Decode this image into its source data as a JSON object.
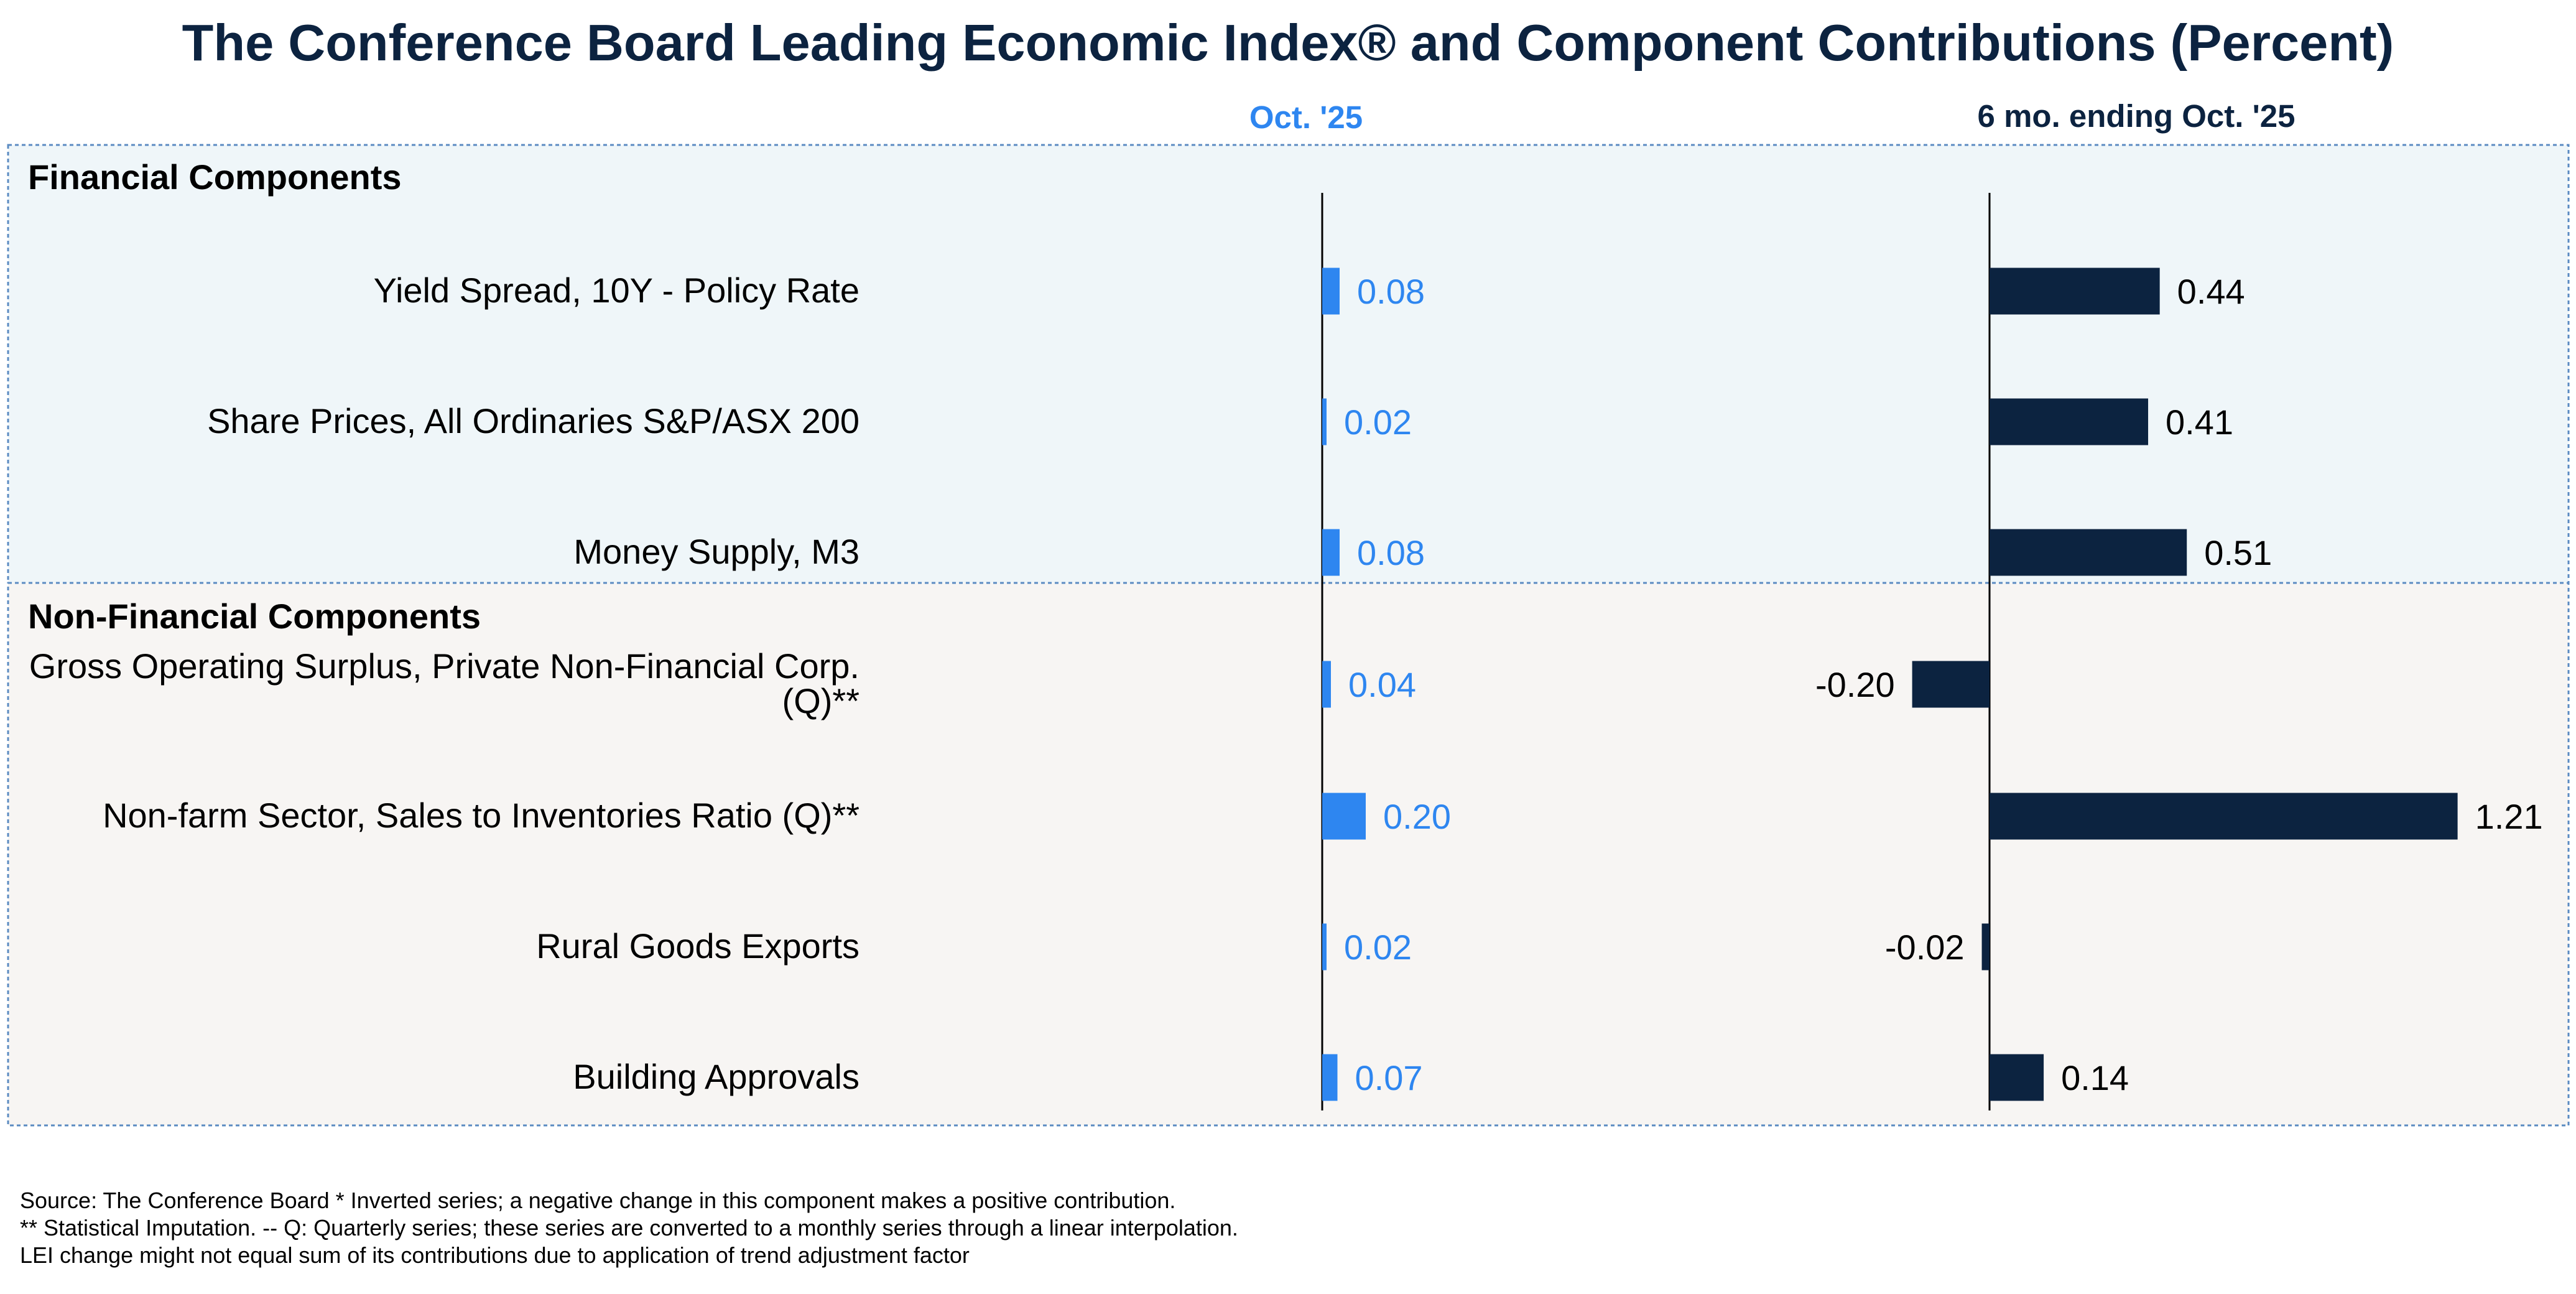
{
  "chart_data": {
    "type": "bar",
    "title": "The Conference Board Leading Economic Index® and Component Contributions (Percent)",
    "colors": {
      "title": "#0c2340",
      "oct": "#2e86f0",
      "six_month": "#0c2340",
      "financial_bg": "#eff6f9",
      "nonfinancial_bg": "#f7f5f3",
      "border": "#5b8bc2"
    },
    "sections": [
      {
        "name": "Financial Components",
        "categories": [
          [
            "Yield Spread, 10Y - Policy Rate"
          ],
          [
            "Share Prices, All Ordinaries S&P/ASX 200"
          ],
          [
            "Money Supply, M3"
          ]
        ]
      },
      {
        "name": "Non-Financial Components",
        "categories": [
          [
            "Gross Operating Surplus, Private Non-Financial Corp.",
            "(Q)**"
          ],
          [
            "Non-farm Sector, Sales to Inventories Ratio (Q)**"
          ],
          [
            "Rural Goods Exports"
          ],
          [
            "Building Approvals"
          ]
        ]
      }
    ],
    "series": [
      {
        "name": "Oct. '25",
        "values": [
          0.08,
          0.02,
          0.08,
          0.04,
          0.2,
          0.02,
          0.07
        ],
        "labels": [
          "0.08",
          "0.02",
          "0.08",
          "0.04",
          "0.20",
          "0.02",
          "0.07"
        ]
      },
      {
        "name": "6 mo. ending Oct. '25",
        "values": [
          0.44,
          0.41,
          0.51,
          -0.2,
          1.21,
          -0.02,
          0.14
        ],
        "labels": [
          "0.44",
          "0.41",
          "0.51",
          "-0.20",
          "1.21",
          "-0.02",
          "0.14"
        ]
      }
    ]
  },
  "footnote": {
    "line1": "Source: The Conference Board *  Inverted series; a negative change in this component makes a positive contribution.",
    "line2": "**  Statistical Imputation. -- Q: Quarterly series; these series are converted to a monthly series through a linear interpolation.",
    "line3": "LEI change might not equal sum of its contributions due to application of trend adjustment factor"
  }
}
